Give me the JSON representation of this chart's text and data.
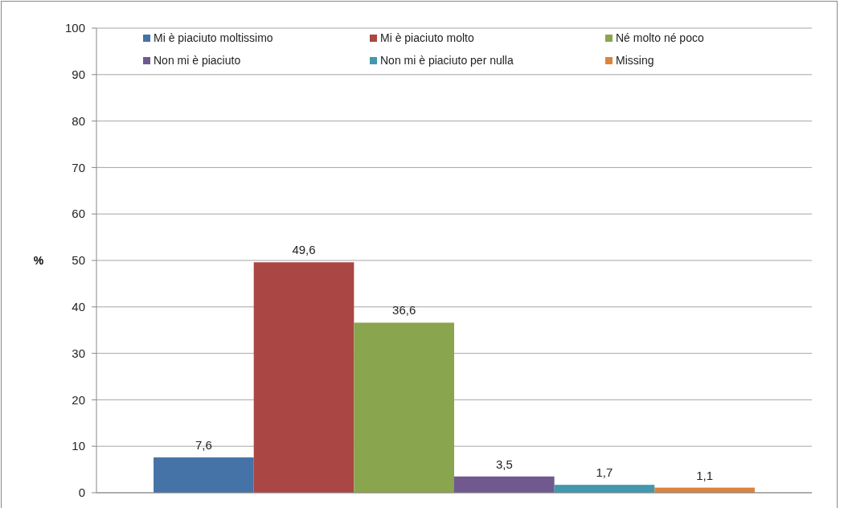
{
  "chart_data": {
    "type": "bar",
    "ylabel": "%",
    "categories": [
      null
    ],
    "series": [
      {
        "name": "Mi è piaciuto moltissimo",
        "color": "#4572a7",
        "values": [
          7.6
        ],
        "value_labels": [
          "7,6"
        ]
      },
      {
        "name": "Mi è piaciuto molto",
        "color": "#aa4643",
        "values": [
          49.6
        ],
        "value_labels": [
          "49,6"
        ]
      },
      {
        "name": "Né molto né poco",
        "color": "#89a54e",
        "values": [
          36.6
        ],
        "value_labels": [
          "36,6"
        ]
      },
      {
        "name": "Non mi è piaciuto",
        "color": "#71588f",
        "values": [
          3.5
        ],
        "value_labels": [
          "3,5"
        ]
      },
      {
        "name": "Non mi è piaciuto per nulla",
        "color": "#4198af",
        "values": [
          1.7
        ],
        "value_labels": [
          "1,7"
        ]
      },
      {
        "name": "Missing",
        "color": "#db843d",
        "values": [
          1.1
        ],
        "value_labels": [
          "1,1"
        ]
      }
    ],
    "ylim": [
      0,
      100
    ],
    "yticks": [
      0,
      10,
      20,
      30,
      40,
      50,
      60,
      70,
      80,
      90,
      100
    ],
    "grid": "y",
    "legend": "top"
  }
}
